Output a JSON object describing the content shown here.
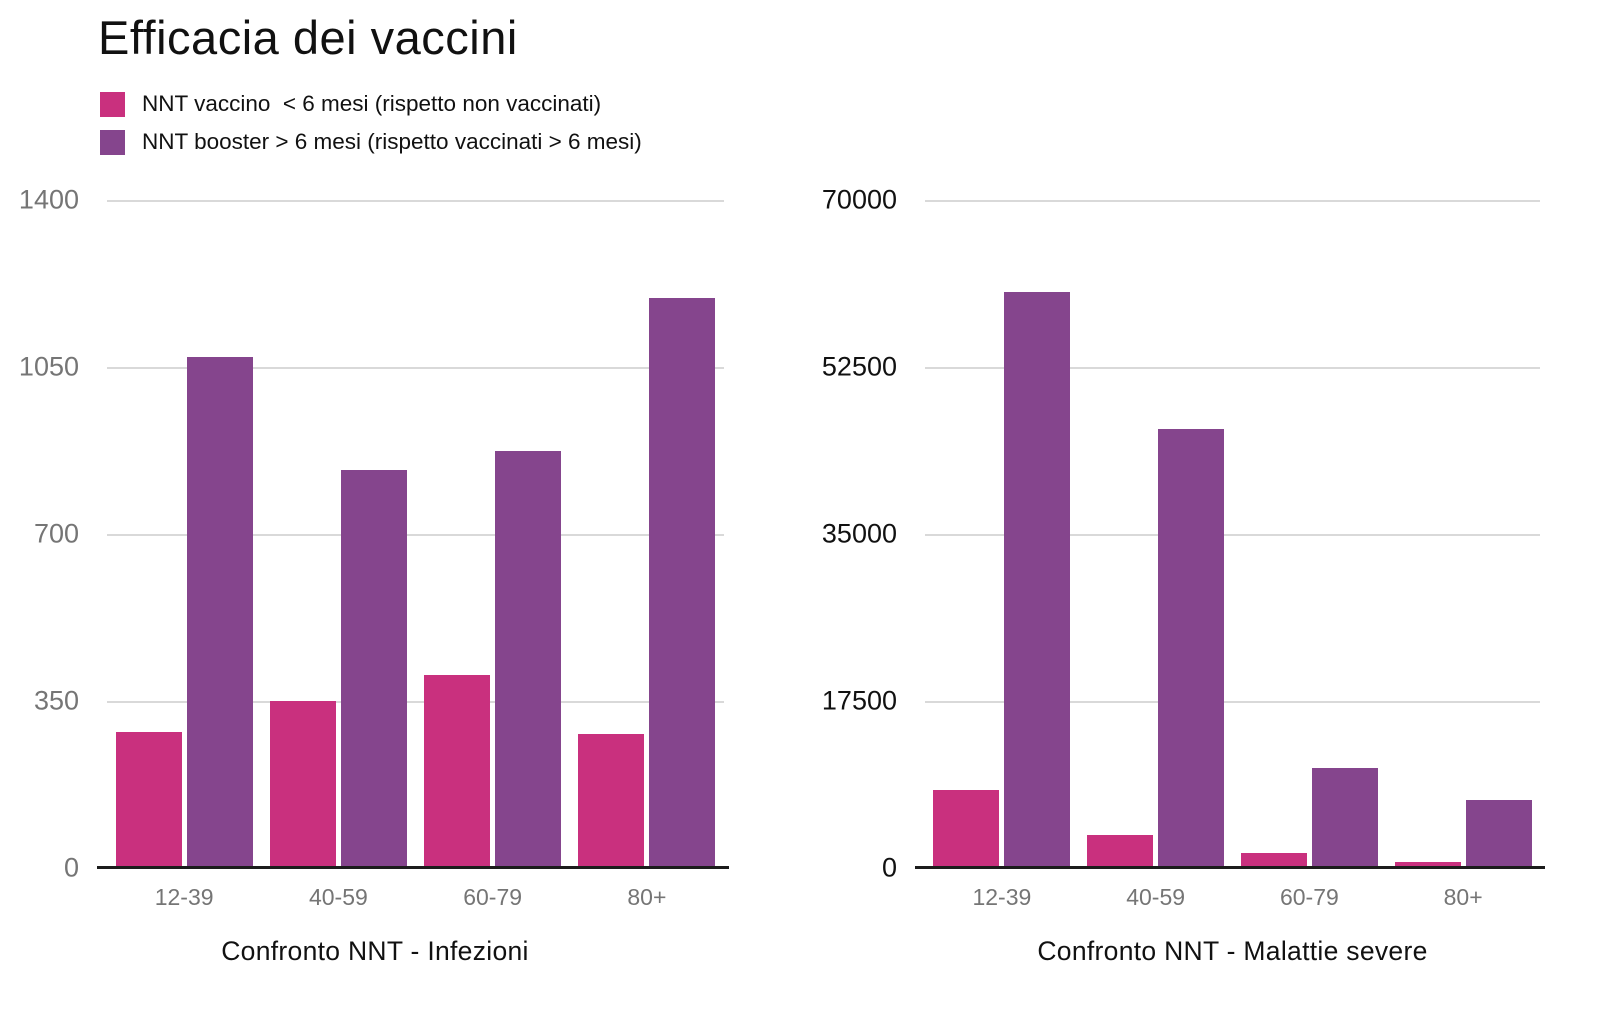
{
  "title": "Efficacia dei vaccini",
  "legend": [
    {
      "label": "NNT vaccino  < 6 mesi (rispetto non vaccinati)",
      "color": "#C9307E"
    },
    {
      "label": "NNT booster > 6 mesi (rispetto vaccinati > 6 mesi)",
      "color": "#85458D"
    }
  ],
  "colors": {
    "vaccino_pink": "#C9307E",
    "booster_purple": "#85458D",
    "gridline": "#D9D9D9",
    "axis_line": "#1C1C1C",
    "muted_text": "#757575",
    "text": "#111111"
  },
  "chart_data": [
    {
      "type": "bar",
      "title": "Confronto NNT - Infezioni",
      "categories": [
        "12-39",
        "40-59",
        "60-79",
        "80+"
      ],
      "series": [
        {
          "name": "NNT vaccino < 6 mesi (rispetto non vaccinati)",
          "key": "vaccino",
          "color": "#C9307E",
          "values": [
            285,
            350,
            405,
            280
          ]
        },
        {
          "name": "NNT booster > 6 mesi (rispetto vaccinati > 6 mesi)",
          "key": "booster",
          "color": "#85458D",
          "values": [
            1070,
            835,
            875,
            1195
          ]
        }
      ],
      "xlabel": "",
      "ylabel": "",
      "ylim": [
        0,
        1400
      ],
      "yticks": [
        0,
        350,
        700,
        1050,
        1400
      ],
      "grid": true,
      "legend_position": "top-left"
    },
    {
      "type": "bar",
      "title": "Confronto  NNT - Malattie severe",
      "categories": [
        "12-39",
        "40-59",
        "60-79",
        "80+"
      ],
      "series": [
        {
          "name": "NNT vaccino < 6 mesi (rispetto non vaccinati)",
          "key": "vaccino",
          "color": "#C9307E",
          "values": [
            8200,
            3500,
            1600,
            670
          ]
        },
        {
          "name": "NNT booster > 6 mesi (rispetto vaccinati > 6 mesi)",
          "key": "booster",
          "color": "#85458D",
          "values": [
            60400,
            46000,
            10500,
            7100
          ]
        }
      ],
      "xlabel": "",
      "ylabel": "",
      "ylim": [
        0,
        70000
      ],
      "yticks": [
        0,
        17500,
        35000,
        52500,
        70000
      ],
      "grid": true,
      "legend_position": "top-left"
    }
  ]
}
